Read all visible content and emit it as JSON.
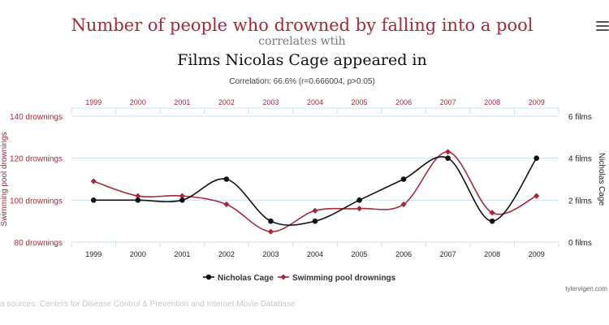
{
  "chart_data": {
    "type": "line",
    "title": "Number of people who drowned by falling into a pool",
    "subtitle_connector": "correlates wtih",
    "title2": "Films Nicolas Cage appeared in",
    "correlation": "Correlation: 66.6% (r=0.666004, p>0.05)",
    "x": [
      "1999",
      "2000",
      "2001",
      "2002",
      "2003",
      "2004",
      "2005",
      "2006",
      "2007",
      "2008",
      "2009"
    ],
    "ylabel_left": "Swimming pool drownings",
    "ylabel_right": "Nicholas Cage",
    "ylim_left": [
      80,
      140
    ],
    "ylim_right": [
      0,
      6
    ],
    "left_ticks": [
      {
        "value": 80,
        "label": "80 drownings"
      },
      {
        "value": 100,
        "label": "100 drownings"
      },
      {
        "value": 120,
        "label": "120 drownings"
      },
      {
        "value": 140,
        "label": "140 drownings"
      }
    ],
    "right_ticks": [
      {
        "value": 0,
        "label": "0 films"
      },
      {
        "value": 2,
        "label": "2 films"
      },
      {
        "value": 4,
        "label": "4 films"
      },
      {
        "value": 6,
        "label": "6 films"
      }
    ],
    "series": [
      {
        "name": "Nicholas Cage",
        "axis": "right",
        "color": "#111111",
        "marker": "circle",
        "values": [
          2,
          2,
          2,
          3,
          1,
          1,
          2,
          3,
          4,
          1,
          4
        ]
      },
      {
        "name": "Swimming pool drownings",
        "axis": "left",
        "color": "#a5283b",
        "marker": "diamond",
        "values": [
          109,
          102,
          102,
          98,
          85,
          95,
          96,
          98,
          123,
          94,
          102
        ]
      }
    ],
    "grid": true,
    "legend": "bottom-center"
  },
  "footer": {
    "sources": "a sources: Centers for Disease Control & Prevention and Internet Movie Database",
    "credit": "tylervigen.com"
  },
  "colors": {
    "accent": "#a5283b",
    "dark": "#111111",
    "grid": "#cfe0f0"
  },
  "menu": {
    "icon": "hamburger-icon"
  }
}
